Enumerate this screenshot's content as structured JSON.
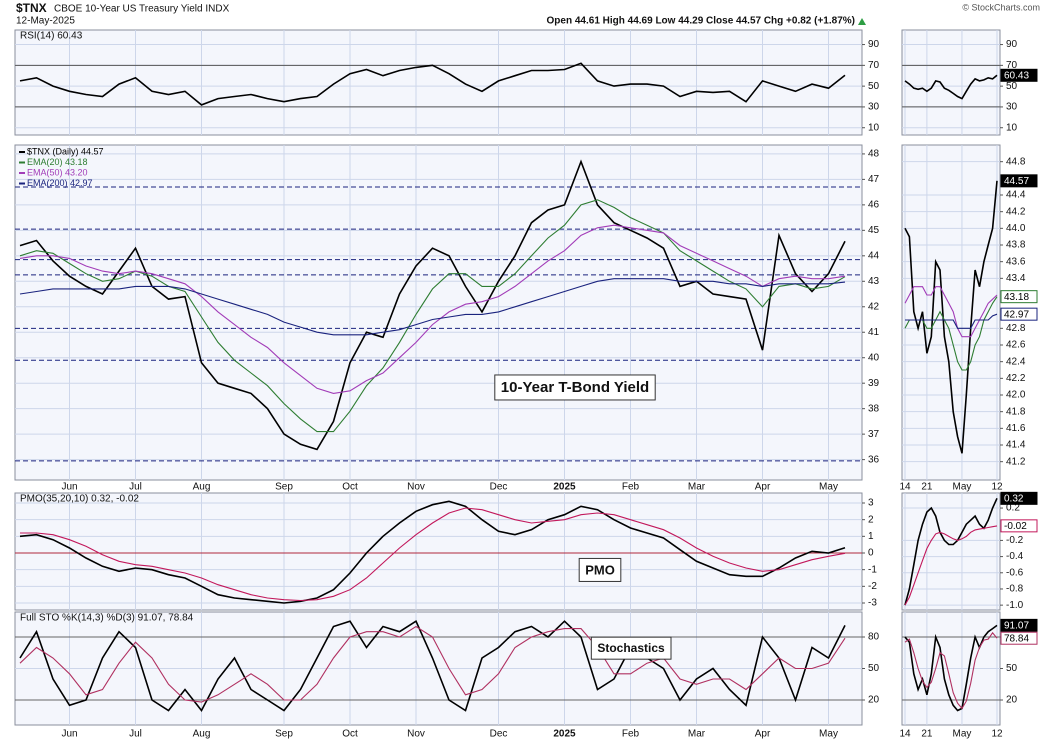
{
  "header": {
    "symbol": "$TNX",
    "description": "CBOE 10-Year US Treasury Yield INDX",
    "date": "12-May-2025",
    "quote": "Open 44.61 High 44.69 Low 44.29 Close 44.57 Chg +0.82 (+1.87%)",
    "credit": "© StockCharts.com"
  },
  "chart_data": [
    {
      "type": "line",
      "title": "RSI(14) 60.43",
      "ylim": [
        3,
        104
      ],
      "yticks": [
        10,
        30,
        50,
        70,
        90
      ],
      "ref_lines": [
        70,
        30
      ],
      "ref_color": "#555555",
      "series": [
        {
          "color": "#000000",
          "values": [
            55,
            58,
            50,
            45,
            42,
            40,
            52,
            58,
            45,
            42,
            45,
            32,
            38,
            40,
            42,
            38,
            35,
            38,
            40,
            52,
            62,
            66,
            60,
            65,
            68,
            70,
            62,
            52,
            45,
            55,
            60,
            65,
            65,
            66,
            72,
            55,
            50,
            52,
            52,
            50,
            40,
            45,
            44,
            45,
            35,
            55,
            50,
            45,
            52,
            48,
            60.43
          ]
        }
      ]
    },
    {
      "type": "line",
      "categories": [
        null,
        null,
        null,
        "Jun",
        null,
        null,
        null,
        "Jul",
        null,
        null,
        null,
        "Aug",
        null,
        null,
        null,
        null,
        "Sep",
        null,
        null,
        null,
        "Oct",
        null,
        null,
        null,
        "Nov",
        null,
        null,
        null,
        null,
        "Dec",
        null,
        null,
        null,
        "2025",
        null,
        null,
        null,
        "Feb",
        null,
        null,
        null,
        "Mar",
        null,
        null,
        null,
        "Apr",
        null,
        null,
        null,
        "May",
        null
      ],
      "ylim": [
        35.2,
        48.35
      ],
      "yticks": [
        36,
        37,
        38,
        39,
        40,
        41,
        42,
        43,
        44,
        45,
        46,
        47,
        48
      ],
      "hlines": [
        46.7,
        45.05,
        43.85,
        43.25,
        41.15,
        39.9,
        35.95
      ],
      "annotation": "10-Year T-Bond Yield",
      "series": [
        {
          "name": "$TNX (Daily) 44.57",
          "color": "#000000",
          "values": [
            44.4,
            44.6,
            43.8,
            43.2,
            42.8,
            42.5,
            43.4,
            44.3,
            42.8,
            42.3,
            42.4,
            39.8,
            39.0,
            38.8,
            38.6,
            38.0,
            37.0,
            36.6,
            36.4,
            37.5,
            39.8,
            41.0,
            40.8,
            42.5,
            43.6,
            44.3,
            44.0,
            42.8,
            41.8,
            43.0,
            44.0,
            45.3,
            45.8,
            46.0,
            47.7,
            46.0,
            45.3,
            45.0,
            44.7,
            44.3,
            42.8,
            43.0,
            42.5,
            42.4,
            42.3,
            40.3,
            44.8,
            43.3,
            42.6,
            43.3,
            44.57
          ]
        },
        {
          "name": "EMA(20) 43.18",
          "color": "#2e7d32",
          "values": [
            44.0,
            44.2,
            44.1,
            43.7,
            43.3,
            43.0,
            43.1,
            43.4,
            43.2,
            42.8,
            42.6,
            41.6,
            40.6,
            39.9,
            39.4,
            38.9,
            38.2,
            37.6,
            37.1,
            37.1,
            37.9,
            38.9,
            39.6,
            40.6,
            41.7,
            42.7,
            43.3,
            43.3,
            42.8,
            42.8,
            43.3,
            44.0,
            44.7,
            45.2,
            46.0,
            46.2,
            45.9,
            45.5,
            45.2,
            44.9,
            44.2,
            43.8,
            43.4,
            43.0,
            42.7,
            42.0,
            42.8,
            42.9,
            42.7,
            42.8,
            43.18
          ]
        },
        {
          "name": "EMA(50) 43.20",
          "color": "#a23cb8",
          "values": [
            43.9,
            44.0,
            44.0,
            43.9,
            43.6,
            43.4,
            43.3,
            43.4,
            43.3,
            43.1,
            42.9,
            42.4,
            41.8,
            41.3,
            40.8,
            40.4,
            39.8,
            39.3,
            38.8,
            38.6,
            38.7,
            39.1,
            39.4,
            40.0,
            40.6,
            41.3,
            41.8,
            42.1,
            42.2,
            42.4,
            42.8,
            43.3,
            43.8,
            44.2,
            44.8,
            45.1,
            45.2,
            45.1,
            45.0,
            44.9,
            44.4,
            44.1,
            43.8,
            43.5,
            43.2,
            42.8,
            43.1,
            43.2,
            43.1,
            43.1,
            43.2
          ]
        },
        {
          "name": "EMA(200) 42.97",
          "color": "#1a237e",
          "values": [
            42.5,
            42.6,
            42.7,
            42.7,
            42.7,
            42.7,
            42.7,
            42.8,
            42.8,
            42.8,
            42.7,
            42.5,
            42.3,
            42.1,
            41.9,
            41.7,
            41.4,
            41.2,
            41.0,
            40.9,
            40.9,
            40.9,
            41.0,
            41.1,
            41.3,
            41.5,
            41.6,
            41.7,
            41.7,
            41.8,
            42.0,
            42.2,
            42.4,
            42.6,
            42.8,
            43.0,
            43.1,
            43.1,
            43.1,
            43.1,
            43.0,
            43.0,
            43.0,
            42.9,
            42.9,
            42.8,
            42.9,
            42.9,
            42.9,
            42.9,
            42.97
          ]
        }
      ]
    },
    {
      "type": "line",
      "title": "PMO(35,20,10) 0.32, -0.02",
      "ylim": [
        -3.42,
        3.6
      ],
      "yticks": [
        3,
        2,
        1,
        0,
        -1,
        -2,
        -3
      ],
      "ref_lines": [
        0
      ],
      "ref_color": "#b0283c",
      "annotation": "PMO",
      "series": [
        {
          "color": "#000000",
          "values": [
            1.0,
            1.1,
            0.8,
            0.3,
            -0.3,
            -0.8,
            -1.1,
            -0.9,
            -1.0,
            -1.3,
            -1.5,
            -2.0,
            -2.5,
            -2.7,
            -2.8,
            -2.9,
            -3.0,
            -2.9,
            -2.7,
            -2.2,
            -1.2,
            0,
            1.0,
            1.8,
            2.5,
            2.9,
            3.1,
            2.8,
            2.0,
            1.3,
            1.1,
            1.4,
            2.0,
            2.3,
            2.8,
            2.6,
            2.0,
            1.5,
            1.2,
            0.9,
            0.2,
            -0.5,
            -0.9,
            -1.3,
            -1.4,
            -1.4,
            -0.9,
            -0.3,
            0.1,
            0.0,
            0.32
          ]
        },
        {
          "color": "#c2185b",
          "values": [
            1.2,
            1.2,
            1.1,
            0.8,
            0.4,
            -0.1,
            -0.5,
            -0.7,
            -0.8,
            -1.0,
            -1.2,
            -1.5,
            -1.9,
            -2.2,
            -2.5,
            -2.7,
            -2.8,
            -2.85,
            -2.8,
            -2.6,
            -2.2,
            -1.5,
            -0.6,
            0.3,
            1.1,
            1.8,
            2.4,
            2.7,
            2.6,
            2.3,
            2.0,
            1.8,
            1.9,
            2.0,
            2.3,
            2.4,
            2.3,
            2.0,
            1.7,
            1.4,
            0.9,
            0.3,
            -0.2,
            -0.6,
            -0.9,
            -1.1,
            -1.0,
            -0.7,
            -0.4,
            -0.2,
            -0.02
          ]
        }
      ]
    },
    {
      "type": "line",
      "title": "Full STO %K(14,3) %D(3) 91.07, 78.84",
      "categories": [
        null,
        null,
        null,
        "Jun",
        null,
        null,
        null,
        "Jul",
        null,
        null,
        null,
        "Aug",
        null,
        null,
        null,
        null,
        "Sep",
        null,
        null,
        null,
        "Oct",
        null,
        null,
        null,
        "Nov",
        null,
        null,
        null,
        null,
        "Dec",
        null,
        null,
        null,
        "2025",
        null,
        null,
        null,
        "Feb",
        null,
        null,
        null,
        "Mar",
        null,
        null,
        null,
        "Apr",
        null,
        null,
        null,
        "May",
        null
      ],
      "ylim": [
        -3.8,
        103.8
      ],
      "yticks": [
        20,
        50,
        80
      ],
      "ref_lines": [
        80,
        20
      ],
      "ref_color": "#666666",
      "annotation": "Stochastics",
      "series": [
        {
          "color": "#000000",
          "values": [
            60,
            85,
            40,
            15,
            20,
            60,
            85,
            70,
            20,
            10,
            30,
            10,
            40,
            60,
            30,
            20,
            10,
            30,
            60,
            90,
            95,
            70,
            90,
            85,
            95,
            60,
            20,
            10,
            60,
            70,
            85,
            90,
            80,
            95,
            80,
            30,
            40,
            70,
            60,
            50,
            20,
            40,
            50,
            30,
            15,
            80,
            60,
            20,
            70,
            60,
            91.07
          ]
        },
        {
          "color": "#b03060",
          "values": [
            55,
            70,
            60,
            45,
            25,
            30,
            55,
            75,
            60,
            35,
            20,
            18,
            25,
            35,
            45,
            35,
            20,
            20,
            35,
            60,
            80,
            85,
            85,
            80,
            90,
            80,
            50,
            25,
            30,
            45,
            70,
            80,
            85,
            88,
            88,
            70,
            45,
            45,
            55,
            60,
            40,
            35,
            40,
            40,
            30,
            45,
            60,
            50,
            50,
            55,
            78.84
          ]
        }
      ]
    },
    {
      "type": "line",
      "ylim": [
        3,
        104
      ],
      "yticks": [
        10,
        30,
        50,
        70,
        90
      ],
      "ref_lines": [
        70,
        30
      ],
      "ref_color": "#555555",
      "series": [
        {
          "color": "#000000",
          "flag": true,
          "values": [
            55,
            52,
            48,
            47,
            48,
            45,
            48,
            55,
            54,
            48,
            46,
            43,
            40,
            38,
            45,
            52,
            57,
            55,
            56,
            58,
            57,
            60.43
          ]
        }
      ]
    },
    {
      "type": "line",
      "categories": [
        "14",
        null,
        null,
        null,
        null,
        "21",
        null,
        null,
        null,
        null,
        null,
        null,
        null,
        "May",
        null,
        null,
        null,
        null,
        null,
        null,
        null,
        "12"
      ],
      "ylim": [
        40.98,
        45.0
      ],
      "yticks": [
        41.2,
        41.4,
        41.6,
        41.8,
        {
          "value": 42,
          "label": "42.0"
        },
        42.2,
        42.4,
        42.6,
        42.8,
        43.4,
        43.6,
        43.8,
        {
          "value": 44,
          "label": "44.0"
        },
        44.2,
        44.4,
        44.8
      ],
      "series": [
        {
          "color": "#000000",
          "flag": true,
          "values": [
            44.0,
            43.9,
            43.0,
            42.8,
            43.0,
            42.5,
            42.7,
            43.6,
            43.5,
            42.7,
            42.4,
            41.8,
            41.5,
            41.3,
            42.0,
            42.8,
            43.5,
            43.3,
            43.6,
            43.8,
            44.0,
            44.57
          ]
        },
        {
          "color": "#2e7d32",
          "flag": true,
          "values": [
            42.8,
            42.9,
            42.9,
            42.9,
            42.9,
            42.8,
            42.8,
            42.9,
            43.0,
            42.9,
            42.8,
            42.6,
            42.4,
            42.3,
            42.3,
            42.4,
            42.6,
            42.7,
            42.9,
            43.0,
            43.1,
            43.18
          ]
        },
        {
          "color": "#a23cb8",
          "flag": false,
          "values": [
            43.1,
            43.2,
            43.3,
            43.3,
            43.3,
            43.2,
            43.2,
            43.3,
            43.3,
            43.2,
            43.1,
            43.0,
            42.8,
            42.7,
            42.7,
            42.7,
            42.8,
            42.9,
            43.0,
            43.1,
            43.15,
            43.2
          ]
        },
        {
          "color": "#1a237e",
          "flag": true,
          "values": [
            42.9,
            42.9,
            42.9,
            42.9,
            42.9,
            42.9,
            42.9,
            42.9,
            42.9,
            42.9,
            42.9,
            42.9,
            42.8,
            42.8,
            42.8,
            42.8,
            42.9,
            42.9,
            42.9,
            42.9,
            42.95,
            42.97
          ]
        }
      ]
    },
    {
      "type": "line",
      "ylim": [
        -1.06,
        0.386
      ],
      "yticks": [
        0.2,
        -0.2,
        -0.4,
        -0.6,
        -0.8,
        {
          "value": -1,
          "label": "-1.0"
        }
      ],
      "series": [
        {
          "color": "#000000",
          "flag": true,
          "values": [
            -1.0,
            -0.8,
            -0.5,
            -0.2,
            0.0,
            0.15,
            0.2,
            0.1,
            -0.1,
            -0.2,
            -0.25,
            -0.25,
            -0.2,
            -0.1,
            0.0,
            0.05,
            0.1,
            0.0,
            -0.05,
            0.05,
            0.2,
            0.32
          ]
        },
        {
          "color": "#c2185b",
          "flag": true,
          "values": [
            -1.0,
            -0.9,
            -0.75,
            -0.6,
            -0.45,
            -0.3,
            -0.2,
            -0.12,
            -0.1,
            -0.12,
            -0.15,
            -0.18,
            -0.2,
            -0.18,
            -0.15,
            -0.1,
            -0.07,
            -0.06,
            -0.05,
            -0.04,
            -0.03,
            -0.02
          ]
        }
      ]
    },
    {
      "type": "line",
      "categories": [
        "14",
        null,
        null,
        null,
        null,
        "21",
        null,
        null,
        null,
        null,
        null,
        null,
        null,
        "May",
        null,
        null,
        null,
        null,
        null,
        null,
        null,
        "12"
      ],
      "ylim": [
        -3.8,
        103.8
      ],
      "yticks": [
        20,
        50,
        80
      ],
      "ref_lines": [
        80,
        20
      ],
      "ref_color": "#666666",
      "series": [
        {
          "color": "#000000",
          "flag": true,
          "values": [
            80,
            75,
            45,
            30,
            40,
            25,
            45,
            80,
            70,
            40,
            25,
            15,
            10,
            12,
            35,
            60,
            80,
            70,
            80,
            85,
            88,
            91.07
          ]
        },
        {
          "color": "#b03060",
          "flag": true,
          "values": [
            75,
            78,
            65,
            50,
            38,
            32,
            37,
            50,
            65,
            62,
            45,
            27,
            17,
            12,
            19,
            36,
            58,
            70,
            77,
            78,
            84,
            78.84
          ]
        }
      ]
    }
  ]
}
